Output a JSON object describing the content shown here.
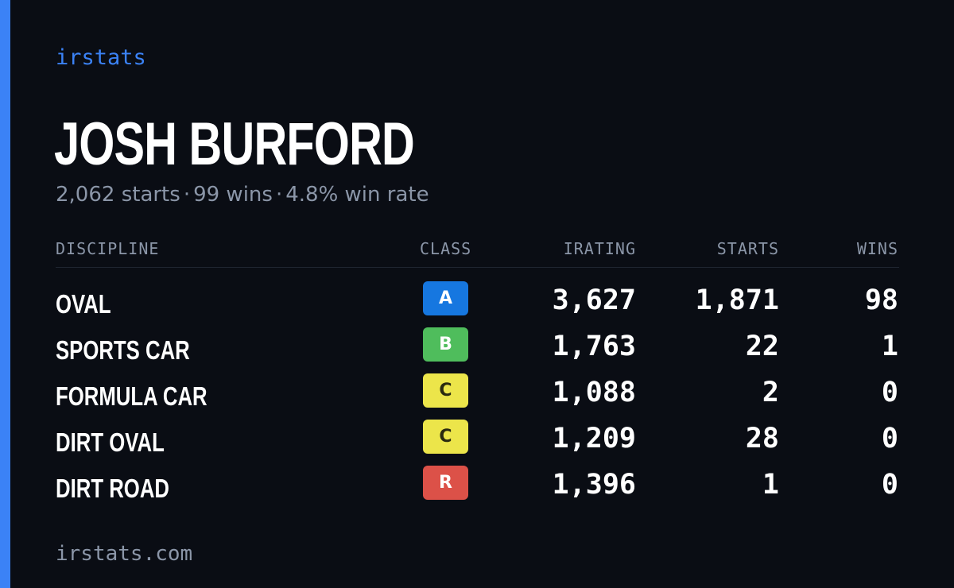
{
  "brand": "irstats",
  "driver": {
    "name": "JOSH BURFORD"
  },
  "summary": {
    "starts": "2,062 starts",
    "wins": "99 wins",
    "win_rate": "4.8% win rate",
    "separator": "·"
  },
  "table": {
    "headers": {
      "discipline": "DISCIPLINE",
      "class": "CLASS",
      "irating": "IRATING",
      "starts": "STARTS",
      "wins": "WINS"
    },
    "rows": [
      {
        "discipline": "OVAL",
        "class": "A",
        "class_color": "#1677e0",
        "class_text_color": "#ffffff",
        "irating": "3,627",
        "starts": "1,871",
        "wins": "98"
      },
      {
        "discipline": "SPORTS CAR",
        "class": "B",
        "class_color": "#4fbd5c",
        "class_text_color": "#ffffff",
        "irating": "1,763",
        "starts": "22",
        "wins": "1"
      },
      {
        "discipline": "FORMULA CAR",
        "class": "C",
        "class_color": "#ece54a",
        "class_text_color": "#2a2a10",
        "irating": "1,088",
        "starts": "2",
        "wins": "0"
      },
      {
        "discipline": "DIRT OVAL",
        "class": "C",
        "class_color": "#ece54a",
        "class_text_color": "#2a2a10",
        "irating": "1,209",
        "starts": "28",
        "wins": "0"
      },
      {
        "discipline": "DIRT ROAD",
        "class": "R",
        "class_color": "#dc5148",
        "class_text_color": "#ffffff",
        "irating": "1,396",
        "starts": "1",
        "wins": "0"
      }
    ]
  },
  "footer": "irstats.com",
  "colors": {
    "background": "#0a0d14",
    "accent": "#3b82f6",
    "muted_text": "#8b96a8"
  }
}
